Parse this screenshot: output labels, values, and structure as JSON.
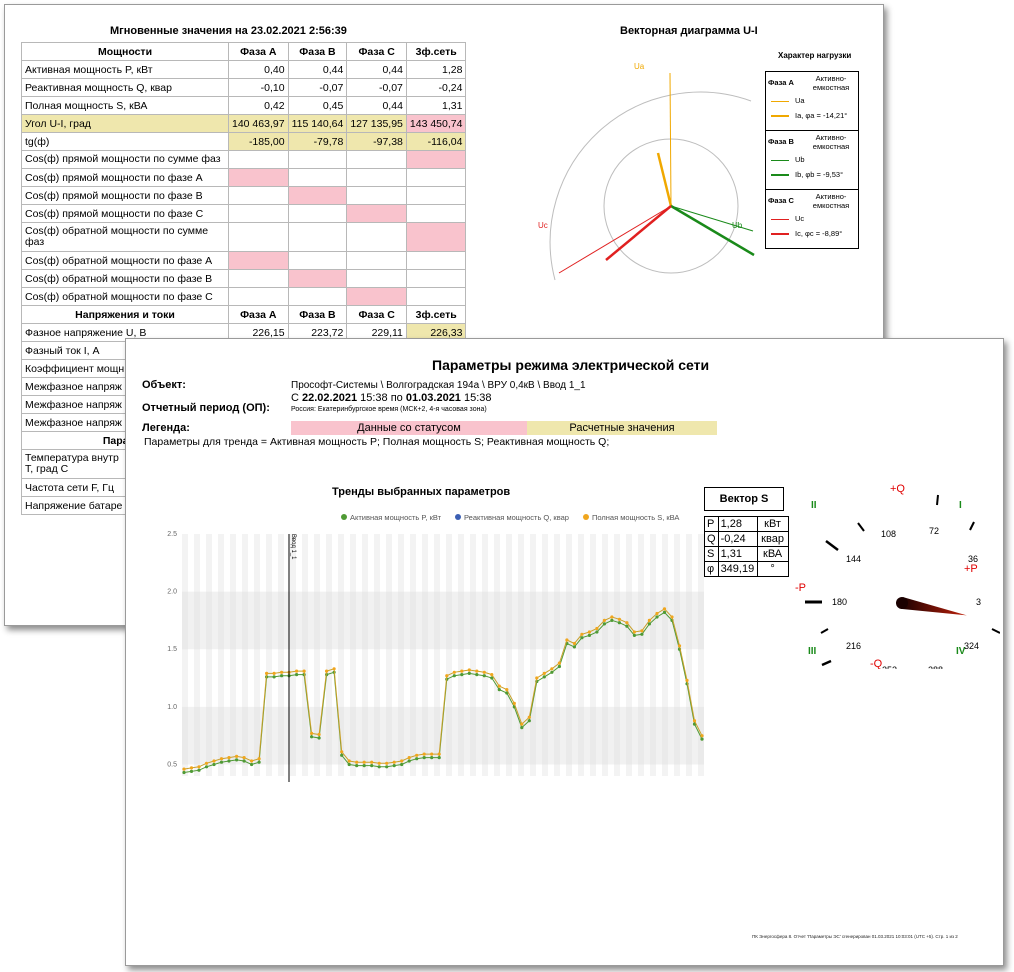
{
  "sheet1": {
    "title": "Мгновенные значения на 23.02.2021 2:56:39",
    "power_header": [
      "Мощности",
      "Фаза А",
      "Фаза В",
      "Фаза С",
      "3ф.сеть"
    ],
    "rows": [
      {
        "name": "Активная мощность P, кВт",
        "a": "0,40",
        "b": "0,44",
        "c": "0,44",
        "s": "1,28"
      },
      {
        "name": "Реактивная мощность Q, квар",
        "a": "-0,10",
        "b": "-0,07",
        "c": "-0,07",
        "s": "-0,24"
      },
      {
        "name": "Полная мощность S, кВА",
        "a": "0,42",
        "b": "0,45",
        "c": "0,44",
        "s": "1,31"
      },
      {
        "name": "Угол U-I, град",
        "a": "140 463,97",
        "b": "115 140,64",
        "c": "127 135,95",
        "s": "143 450,74"
      },
      {
        "name": "tg(ф)",
        "a": "-185,00",
        "b": "-79,78",
        "c": "-97,38",
        "s": "-116,04"
      },
      {
        "name": "Cos(ф) прямой мощности по сумме фаз"
      },
      {
        "name": "Cos(ф) прямой мощности по фазе А"
      },
      {
        "name": "Cos(ф) прямой мощности по фазе В"
      },
      {
        "name": "Cos(ф) прямой мощности по фазе С"
      },
      {
        "name": "Cos(ф) обратной мощности по сумме фаз"
      },
      {
        "name": "Cos(ф) обратной мощности по фазе А"
      },
      {
        "name": "Cos(ф) обратной мощности по фазе В"
      },
      {
        "name": "Cos(ф) обратной мощности по фазе С"
      }
    ],
    "voltage_header": [
      "Напряжения и токи",
      "Фаза А",
      "Фаза В",
      "Фаза С",
      "3ф.сеть"
    ],
    "voltage_row": {
      "name": "Фазное напряжение U, В",
      "a": "226,15",
      "b": "223,72",
      "c": "229,11",
      "s": "226,33"
    },
    "partial_rows": [
      "Фазный ток I, А",
      "Коэффициент мощн",
      "Межфазное напряж",
      "Межфазное напряж",
      "Межфазное напряж",
      "Парамет",
      "Температура внутр",
      "Т, град С",
      "Частота сети F, Гц",
      "Напряжение батаре"
    ],
    "vector_title": "Векторная диаграмма U-I",
    "vector_labels": {
      "ua": "Ua",
      "ub": "Ub",
      "uc": "Uc"
    },
    "load_title": "Характер нагрузки",
    "load": [
      {
        "phase": "Фаза А",
        "character": "Активно-емкостная",
        "u": "Ua",
        "i": "Ia, φa = -14,21°",
        "color": "#f0a800"
      },
      {
        "phase": "Фаза В",
        "character": "Активно-емкостная",
        "u": "Ub",
        "i": "Ib, φb = -9,53°",
        "color": "#1a8a1a"
      },
      {
        "phase": "Фаза С",
        "character": "Активно-емкостная",
        "u": "Uc",
        "i": "Ic, φc = -8,89°",
        "color": "#e02020"
      }
    ]
  },
  "sheet2": {
    "title": "Параметры режима электрической сети",
    "object_label": "Объект:",
    "object_value": "Прософт-Системы \\ Волгоградская 194а \\ ВРУ 0,4кВ \\ Ввод 1_1",
    "period_label": "Отчетный период (ОП):",
    "period_from_prefix": "С",
    "period_from": "22.02.2021",
    "period_from_time": "15:38 по",
    "period_to": "01.03.2021",
    "period_to_time": "15:38",
    "timezone": "Россия: Екатеринбургское время (МСК+2, 4-я часовая зона)",
    "legend_label": "Легенда:",
    "legend_status": "Данные со статусом",
    "legend_calc": "Расчетные значения",
    "params_text": "Параметры для тренда = Активная мощность P; Полная мощность S; Реактивная мощность Q;",
    "trend_title": "Тренды выбранных параметров",
    "vector_s_title": "Вектор S",
    "vector_s": [
      {
        "sym": "P",
        "val": "1,28",
        "unit": "кВт"
      },
      {
        "sym": "Q",
        "val": "-0,24",
        "unit": "квар"
      },
      {
        "sym": "S",
        "val": "1,31",
        "unit": "кВА"
      },
      {
        "sym": "φ",
        "val": "349,19",
        "unit": "°"
      }
    ],
    "dial": {
      "quadrants": [
        "II",
        "I",
        "III",
        "IV"
      ],
      "axes": [
        "+Q",
        "-P",
        "+P",
        "-Q"
      ],
      "ticks": [
        "108",
        "72",
        "144",
        "36",
        "180",
        "3",
        "216",
        "324",
        "252",
        "288"
      ],
      "angle_deg": 349.19
    },
    "footer": "ПК Энергосфера 8. Отчет 'Параметры ЭС' сгенерирован 01.03.2021 10:03:01 (UTC +5). Стр. 1 из 2"
  },
  "chart_data": {
    "type": "line",
    "title": "Тренды выбранных параметров",
    "xlabel": "",
    "ylabel": "",
    "ylim": [
      0.4,
      2.5
    ],
    "yticks": [
      "0.5",
      "1.0",
      "1.5",
      "2.0",
      "2.5"
    ],
    "marker_label": "Ввод 1_1",
    "series": [
      {
        "name": "Активная мощность P, кВт",
        "color": "#4f9a35",
        "values": [
          0.43,
          0.44,
          0.45,
          0.48,
          0.5,
          0.52,
          0.53,
          0.54,
          0.53,
          0.5,
          0.52,
          1.26,
          1.26,
          1.27,
          1.27,
          1.28,
          1.28,
          0.74,
          0.73,
          1.28,
          1.3,
          0.58,
          0.5,
          0.49,
          0.49,
          0.49,
          0.48,
          0.48,
          0.49,
          0.5,
          0.53,
          0.55,
          0.56,
          0.56,
          0.56,
          1.24,
          1.27,
          1.28,
          1.29,
          1.28,
          1.27,
          1.25,
          1.15,
          1.12,
          1.0,
          0.82,
          0.88,
          1.22,
          1.26,
          1.3,
          1.35,
          1.55,
          1.52,
          1.6,
          1.62,
          1.65,
          1.72,
          1.75,
          1.73,
          1.7,
          1.62,
          1.63,
          1.72,
          1.78,
          1.82,
          1.75,
          1.5,
          1.2,
          0.85,
          0.72
        ]
      },
      {
        "name": "Реактивная мощность Q, квар",
        "color": "#3b5fb4",
        "values": []
      },
      {
        "name": "Полная мощность S, кВА",
        "color": "#f0a61e",
        "values": [
          0.46,
          0.47,
          0.48,
          0.51,
          0.53,
          0.55,
          0.56,
          0.57,
          0.56,
          0.53,
          0.55,
          1.29,
          1.29,
          1.3,
          1.3,
          1.31,
          1.31,
          0.77,
          0.76,
          1.31,
          1.33,
          0.61,
          0.53,
          0.52,
          0.52,
          0.52,
          0.51,
          0.51,
          0.52,
          0.53,
          0.56,
          0.58,
          0.59,
          0.59,
          0.59,
          1.27,
          1.3,
          1.31,
          1.32,
          1.31,
          1.3,
          1.28,
          1.18,
          1.15,
          1.03,
          0.85,
          0.91,
          1.25,
          1.29,
          1.33,
          1.38,
          1.58,
          1.55,
          1.63,
          1.65,
          1.68,
          1.75,
          1.78,
          1.76,
          1.73,
          1.65,
          1.66,
          1.75,
          1.81,
          1.85,
          1.78,
          1.53,
          1.23,
          0.88,
          0.75
        ]
      }
    ]
  }
}
